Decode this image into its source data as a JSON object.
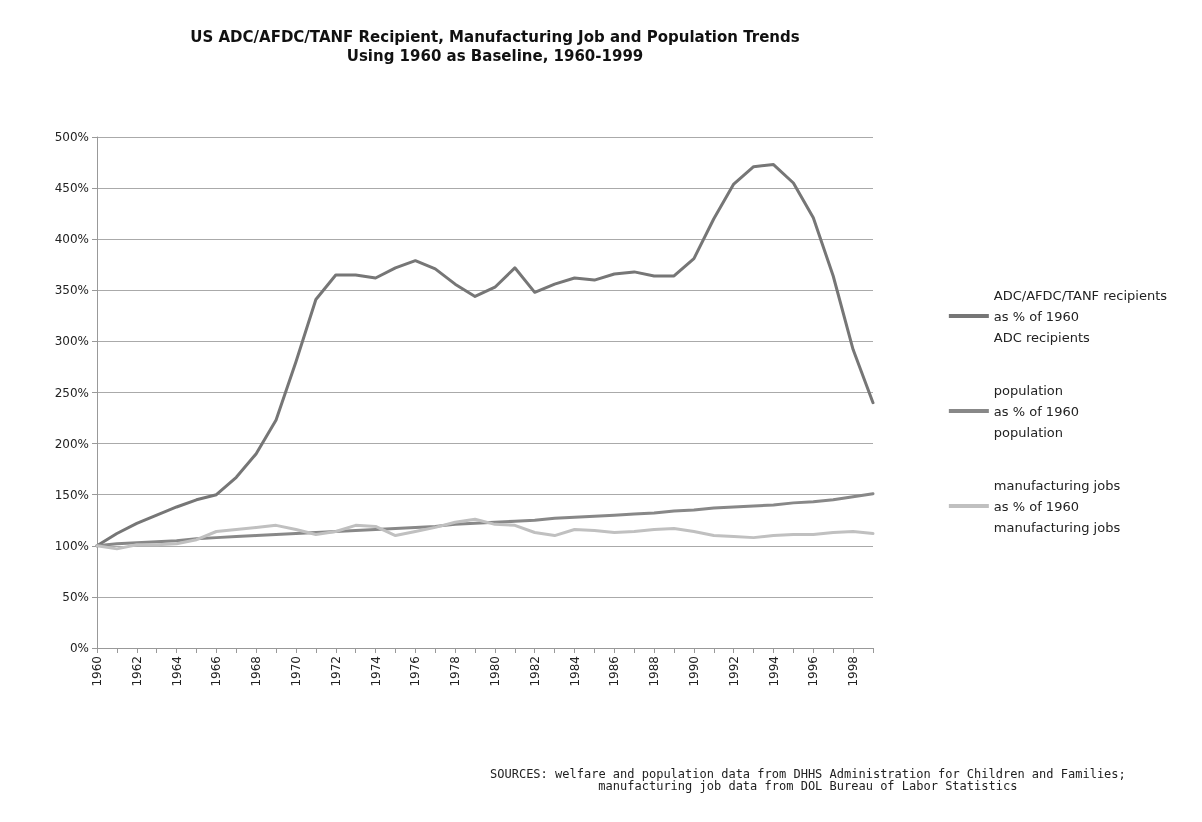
{
  "chart_data": {
    "type": "line",
    "title": "US ADC/AFDC/TANF Recipient, Manufacturing Job and Population Trends\nUsing 1960 as Baseline, 1960-1999",
    "categories": [
      "1960",
      null,
      "1962",
      null,
      "1964",
      null,
      "1966",
      null,
      "1968",
      null,
      "1970",
      null,
      "1972",
      null,
      "1974",
      null,
      "1976",
      null,
      "1978",
      null,
      "1980",
      null,
      "1982",
      null,
      "1984",
      null,
      "1986",
      null,
      "1988",
      null,
      "1990",
      null,
      "1992",
      null,
      "1994",
      null,
      "1996",
      null,
      "1998",
      null
    ],
    "series": [
      {
        "name": "ADC/AFDC/TANF recipients\nas % of 1960\nADC recipients",
        "color": "#767676",
        "values": [
          100,
          112,
          122,
          130,
          138,
          145,
          150,
          167,
          190,
          223,
          280,
          341,
          365,
          365,
          362,
          372,
          379,
          371,
          356,
          344,
          353,
          372,
          348,
          356,
          362,
          360,
          366,
          368,
          364,
          364,
          381,
          420,
          454,
          471,
          473,
          455,
          421,
          364,
          292,
          240
        ]
      },
      {
        "name": "population\nas % of 1960\npopulation",
        "color": "#888888",
        "values": [
          100,
          102,
          103,
          104,
          105,
          107,
          108,
          109,
          110,
          111,
          112,
          113,
          114,
          115,
          116,
          117,
          118,
          119,
          121,
          122,
          123,
          124,
          125,
          127,
          128,
          129,
          130,
          131,
          132,
          134,
          135,
          137,
          138,
          139,
          140,
          142,
          143,
          145,
          148,
          151
        ]
      },
      {
        "name": "manufacturing jobs\nas % of 1960\nmanufacturing jobs",
        "color": "#c0c0c0",
        "values": [
          100,
          97,
          101,
          101,
          102,
          106,
          114,
          116,
          118,
          120,
          116,
          111,
          114,
          120,
          119,
          110,
          114,
          118,
          123,
          126,
          121,
          120,
          113,
          110,
          116,
          115,
          113,
          114,
          116,
          117,
          114,
          110,
          109,
          108,
          110,
          111,
          111,
          113,
          114,
          112
        ]
      }
    ],
    "ylim": [
      0,
      500
    ],
    "yticks": [
      {
        "value": 0,
        "label": "0%"
      },
      {
        "value": 50,
        "label": "50%"
      },
      {
        "value": 100,
        "label": "100%"
      },
      {
        "value": 150,
        "label": "150%"
      },
      {
        "value": 200,
        "label": "200%"
      },
      {
        "value": 250,
        "label": "250%"
      },
      {
        "value": 300,
        "label": "300%"
      },
      {
        "value": 350,
        "label": "350%"
      },
      {
        "value": 400,
        "label": "400%"
      },
      {
        "value": 450,
        "label": "450%"
      },
      {
        "value": 500,
        "label": "500%"
      }
    ],
    "grid": "y",
    "legend": "right",
    "marker": "none",
    "line_style": "solid",
    "annotations": [
      "SOURCES: welfare and population data from DHHS Administration for Children and Families;\nmanufacturing job data from DOL Bureau of Labor Statistics"
    ]
  }
}
